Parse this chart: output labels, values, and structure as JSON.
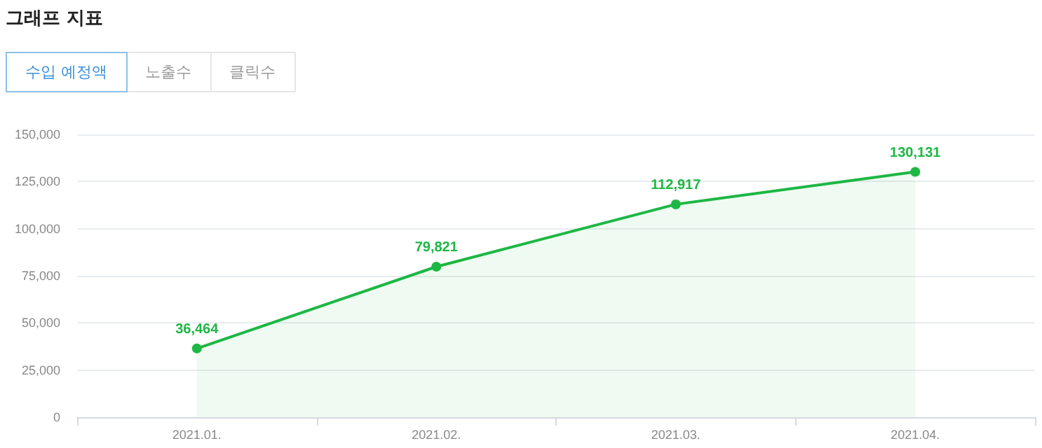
{
  "chart_data": {
    "type": "area",
    "title": "그래프 지표",
    "annotations": [
      "수입 예정액",
      "노출수",
      "클릭수"
    ],
    "categories": [
      "2021.01.",
      "2021.02.",
      "2021.03.",
      "2021.04."
    ],
    "series": [
      {
        "color": "#1db744",
        "values": [
          36464,
          79821,
          112917,
          130131
        ],
        "value_labels": [
          "36,464",
          "79,821",
          "112,917",
          "130,131"
        ]
      }
    ],
    "ylim": [
      0,
      150000
    ],
    "yticks": [
      0,
      {
        "value": 25000,
        "label": "25,000"
      },
      {
        "value": 50000,
        "label": "50,000"
      },
      {
        "value": 75000,
        "label": "75,000"
      },
      {
        "value": 100000,
        "label": "100,000"
      },
      {
        "value": 125000,
        "label": "125,000"
      },
      {
        "value": 150000,
        "label": "150,000"
      }
    ],
    "grid": "y",
    "marker": "circle"
  }
}
